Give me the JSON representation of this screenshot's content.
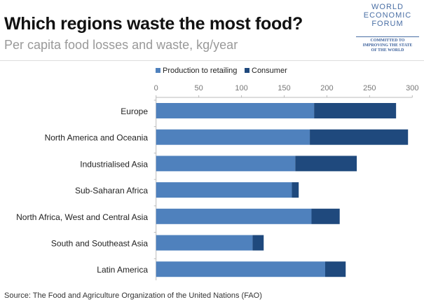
{
  "header": {
    "title": "Which regions waste the most food?",
    "subtitle": "Per capita food losses and waste, kg/year"
  },
  "logo": {
    "text": [
      "WORLD",
      "ECONOMIC",
      "FORUM"
    ],
    "tagline": [
      "COMMITTED TO",
      "IMPROVING THE STATE",
      "OF THE WORLD"
    ]
  },
  "source": "Source: The Food and Agriculture Organization of the United Nations (FAO)",
  "chart_data": {
    "type": "bar",
    "orientation": "horizontal",
    "stacked": true,
    "title": "",
    "xlabel": "",
    "ylabel": "",
    "xlim": [
      0,
      300
    ],
    "xticks": [
      0,
      50,
      100,
      150,
      200,
      250,
      300
    ],
    "legend_position": "top",
    "categories": [
      "Europe",
      "North America and Oceania",
      "Industrialised Asia",
      "Sub-Saharan Africa",
      "North Africa, West and Central Asia",
      "South and Southeast Asia",
      "Latin America"
    ],
    "series": [
      {
        "name": "Production to retailing",
        "color": "#4f81bd",
        "values": [
          185,
          180,
          163,
          159,
          182,
          113,
          198
        ]
      },
      {
        "name": "Consumer",
        "color": "#1f497d",
        "values": [
          96,
          115,
          72,
          8,
          33,
          13,
          24
        ]
      }
    ]
  }
}
